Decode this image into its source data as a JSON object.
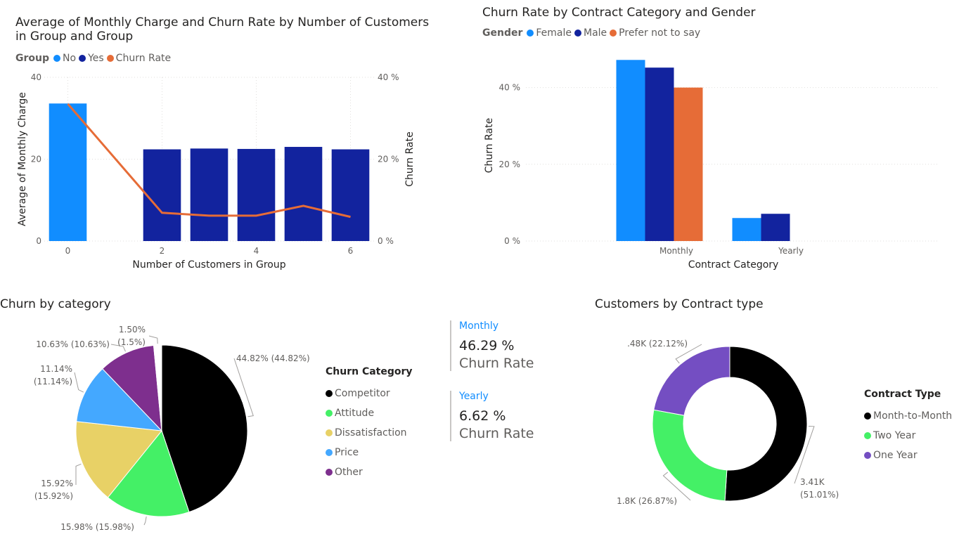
{
  "chart_data": [
    {
      "type": "bar",
      "title": "Average of Monthly Charge and Churn Rate by Number of Customers in Group and Group",
      "title_lines": [
        "Average of Monthly Charge and Churn Rate by Number of Customers",
        "in Group and Group"
      ],
      "legend_title": "Group",
      "xlabel": "Number of Customers in Group",
      "ylabel": "Average of Monthly Charge",
      "y2label": "Churn Rate",
      "x_ticks": [
        "0",
        "2",
        "4",
        "6"
      ],
      "y_ticks": [
        "0",
        "20",
        "40"
      ],
      "y2_ticks": [
        "0 %",
        "20 %",
        "40 %"
      ],
      "ylim": [
        0,
        40
      ],
      "y2lim": [
        0,
        40
      ],
      "grid": true,
      "series": [
        {
          "name": "No",
          "color": "#118DFF",
          "kind": "bar",
          "points": [
            {
              "x": 0,
              "y": 33.6
            }
          ]
        },
        {
          "name": "Yes",
          "color": "#12239E",
          "kind": "bar",
          "points": [
            {
              "x": 2,
              "y": 22.4
            },
            {
              "x": 3,
              "y": 22.6
            },
            {
              "x": 4,
              "y": 22.5
            },
            {
              "x": 5,
              "y": 23.0
            },
            {
              "x": 6,
              "y": 22.4
            }
          ]
        },
        {
          "name": "Churn Rate",
          "color": "#E66C37",
          "kind": "line",
          "axis": "right",
          "points": [
            {
              "x": 0,
              "y": 33.5
            },
            {
              "x": 2,
              "y": 6.9
            },
            {
              "x": 3,
              "y": 6.2
            },
            {
              "x": 4,
              "y": 6.2
            },
            {
              "x": 5,
              "y": 8.6
            },
            {
              "x": 6,
              "y": 5.9
            }
          ]
        }
      ]
    },
    {
      "type": "bar",
      "title": "Churn Rate by Contract Category and Gender",
      "legend_title": "Gender",
      "xlabel": "Contract Category",
      "ylabel": "Churn Rate",
      "categories": [
        "Monthly",
        "Yearly"
      ],
      "y_ticks": [
        "0 %",
        "20 %",
        "40 %"
      ],
      "ylim": [
        0,
        50
      ],
      "grid": true,
      "series": [
        {
          "name": "Female",
          "color": "#118DFF",
          "values": [
            47.2,
            6.0
          ]
        },
        {
          "name": "Male",
          "color": "#12239E",
          "values": [
            45.2,
            7.1
          ]
        },
        {
          "name": "Prefer not to say",
          "color": "#E66C37",
          "values": [
            40.0,
            null
          ]
        }
      ]
    },
    {
      "type": "pie",
      "title": "Churn by category",
      "legend_title": "Churn Category",
      "slices": [
        {
          "name": "Competitor",
          "value": 44.82,
          "color": "#000000",
          "label": [
            "44.82% (44.82%)"
          ]
        },
        {
          "name": "Attitude",
          "value": 15.98,
          "color": "#44F066",
          "label": [
            "15.98% (15.98%)"
          ]
        },
        {
          "name": "Dissatisfaction",
          "value": 15.92,
          "color": "#E8D166",
          "label": [
            "15.92%",
            "(15.92%)"
          ]
        },
        {
          "name": "Price",
          "value": 11.14,
          "color": "#44A8FF",
          "label": [
            "11.14%",
            "(11.14%)"
          ]
        },
        {
          "name": "Other",
          "value": 10.63,
          "color": "#7E2F8E",
          "label": [
            "10.63% (10.63%)"
          ]
        },
        {
          "name": "",
          "value": 1.5,
          "color": "#FFFFFF",
          "label": [
            "1.50%",
            "(1.5%)"
          ]
        }
      ]
    },
    {
      "type": "pie",
      "subtype": "donut",
      "title": "Customers by Contract type",
      "legend_title": "Contract Type",
      "slices": [
        {
          "name": "Month-to-Month",
          "value": 51.01,
          "color": "#000000",
          "label": [
            "3.41K",
            "(51.01%)"
          ]
        },
        {
          "name": "Two Year",
          "value": 26.87,
          "color": "#44F066",
          "label": [
            "1.8K (26.87%)"
          ]
        },
        {
          "name": "One Year",
          "value": 22.12,
          "color": "#744EC2",
          "label": [
            ".48K (22.12%)"
          ]
        }
      ]
    }
  ],
  "cards": [
    {
      "title": "Monthly",
      "value": "46.29 %",
      "label": "Churn Rate"
    },
    {
      "title": "Yearly",
      "value": "6.62 %",
      "label": "Churn Rate"
    }
  ]
}
